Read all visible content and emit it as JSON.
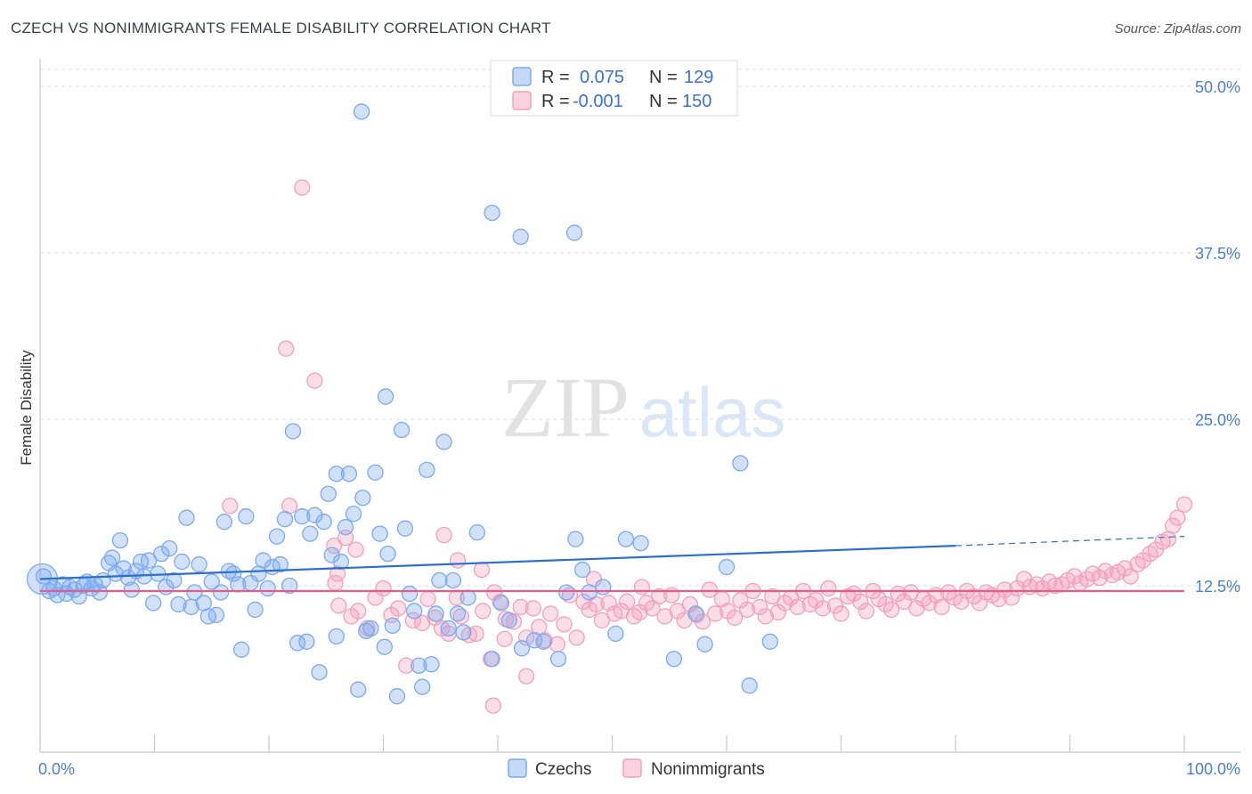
{
  "title": "CZECH VS NONIMMIGRANTS FEMALE DISABILITY CORRELATION CHART",
  "source": "Source: ZipAtlas.com",
  "watermark": {
    "zip": "ZIP",
    "atlas": "atlas"
  },
  "chart_data": {
    "type": "scatter",
    "title": "CZECH VS NONIMMIGRANTS FEMALE DISABILITY CORRELATION CHART",
    "ylabel": "Female Disability",
    "xlim": [
      0,
      100
    ],
    "ylim": [
      0,
      50
    ],
    "x_tick_labels": [
      "0.0%",
      "100.0%"
    ],
    "y_ticks": [
      {
        "value": 12.5,
        "label": "12.5%"
      },
      {
        "value": 25.0,
        "label": "25.0%"
      },
      {
        "value": 37.5,
        "label": "37.5%"
      },
      {
        "value": 50.0,
        "label": "50.0%"
      }
    ],
    "grid": "horizontal dashed",
    "legend_placement": "top-center",
    "legend": [
      {
        "r_label": "R =",
        "r": "0.075",
        "n_label": "N =",
        "n": "129",
        "color": "#7aaaf0"
      },
      {
        "r_label": "R =",
        "r": "-0.001",
        "n_label": "N =",
        "n": "150",
        "color": "#f4a0bb"
      }
    ],
    "series": [
      {
        "name": "Czechs",
        "color": "#7aaaf0",
        "line_color": "#2b6fd0",
        "trend": {
          "x0": 0,
          "y0": 13.0,
          "x1": 80,
          "y1": 15.5,
          "dash_x1": 100,
          "dash_y1": 16.2
        },
        "points": [
          [
            0.3,
            13.2
          ],
          [
            0.8,
            12.1
          ],
          [
            1.2,
            12.3
          ],
          [
            1.5,
            11.8
          ],
          [
            2.0,
            12.6
          ],
          [
            2.3,
            11.9
          ],
          [
            2.6,
            12.4
          ],
          [
            3.0,
            12.2
          ],
          [
            3.4,
            11.7
          ],
          [
            3.8,
            12.5
          ],
          [
            4.1,
            12.8
          ],
          [
            4.5,
            12.3
          ],
          [
            4.8,
            12.6
          ],
          [
            5.2,
            12.0
          ],
          [
            5.5,
            12.9
          ],
          [
            6.0,
            14.2
          ],
          [
            6.3,
            14.6
          ],
          [
            6.6,
            13.4
          ],
          [
            7.0,
            15.9
          ],
          [
            7.3,
            13.8
          ],
          [
            7.7,
            13.1
          ],
          [
            8.0,
            12.2
          ],
          [
            8.4,
            13.6
          ],
          [
            8.8,
            14.3
          ],
          [
            9.1,
            13.2
          ],
          [
            9.5,
            14.4
          ],
          [
            9.9,
            11.2
          ],
          [
            10.3,
            13.4
          ],
          [
            10.6,
            14.9
          ],
          [
            11.0,
            12.4
          ],
          [
            11.3,
            15.3
          ],
          [
            11.7,
            12.9
          ],
          [
            12.1,
            11.1
          ],
          [
            12.4,
            14.3
          ],
          [
            12.8,
            17.6
          ],
          [
            13.2,
            10.9
          ],
          [
            13.5,
            12.0
          ],
          [
            13.9,
            14.1
          ],
          [
            14.3,
            11.2
          ],
          [
            14.7,
            10.2
          ],
          [
            15.0,
            12.8
          ],
          [
            15.4,
            10.3
          ],
          [
            15.8,
            12.0
          ],
          [
            16.1,
            17.3
          ],
          [
            16.5,
            13.6
          ],
          [
            16.9,
            13.4
          ],
          [
            17.3,
            12.6
          ],
          [
            17.6,
            7.7
          ],
          [
            18.0,
            17.7
          ],
          [
            18.4,
            12.7
          ],
          [
            18.8,
            10.7
          ],
          [
            19.1,
            13.4
          ],
          [
            19.5,
            14.4
          ],
          [
            19.9,
            12.3
          ],
          [
            20.3,
            13.9
          ],
          [
            20.7,
            16.2
          ],
          [
            21.0,
            14.1
          ],
          [
            21.4,
            17.5
          ],
          [
            21.8,
            12.5
          ],
          [
            22.1,
            24.1
          ],
          [
            22.5,
            8.2
          ],
          [
            22.9,
            17.7
          ],
          [
            23.3,
            8.3
          ],
          [
            23.6,
            16.4
          ],
          [
            24.0,
            17.8
          ],
          [
            24.4,
            6.0
          ],
          [
            24.8,
            17.3
          ],
          [
            25.2,
            19.4
          ],
          [
            25.5,
            14.8
          ],
          [
            25.9,
            8.7
          ],
          [
            26.3,
            14.3
          ],
          [
            26.7,
            16.9
          ],
          [
            27.0,
            20.9
          ],
          [
            27.4,
            17.9
          ],
          [
            27.8,
            4.7
          ],
          [
            28.2,
            19.1
          ],
          [
            28.5,
            9.1
          ],
          [
            28.9,
            9.3
          ],
          [
            29.3,
            21.0
          ],
          [
            29.7,
            16.4
          ],
          [
            30.1,
            7.9
          ],
          [
            30.4,
            14.9
          ],
          [
            30.8,
            9.5
          ],
          [
            31.2,
            4.2
          ],
          [
            31.6,
            24.2
          ],
          [
            31.9,
            16.8
          ],
          [
            32.3,
            11.9
          ],
          [
            32.7,
            10.6
          ],
          [
            33.1,
            6.5
          ],
          [
            33.4,
            4.9
          ],
          [
            33.8,
            21.2
          ],
          [
            34.2,
            6.6
          ],
          [
            34.6,
            10.4
          ],
          [
            34.9,
            12.9
          ],
          [
            35.3,
            23.3
          ],
          [
            35.7,
            9.3
          ],
          [
            36.1,
            12.9
          ],
          [
            36.5,
            10.4
          ],
          [
            37.0,
            9.0
          ],
          [
            37.4,
            11.6
          ],
          [
            38.2,
            16.5
          ],
          [
            39.5,
            7.0
          ],
          [
            40.3,
            11.2
          ],
          [
            41.0,
            9.9
          ],
          [
            42.1,
            7.8
          ],
          [
            43.2,
            8.4
          ],
          [
            44.0,
            8.3
          ],
          [
            45.3,
            7.0
          ],
          [
            46.0,
            12.0
          ],
          [
            46.8,
            16.0
          ],
          [
            47.4,
            13.7
          ],
          [
            48.0,
            12.0
          ],
          [
            49.2,
            12.4
          ],
          [
            50.3,
            8.9
          ],
          [
            51.2,
            16.0
          ],
          [
            52.5,
            15.7
          ],
          [
            55.4,
            7.0
          ],
          [
            57.3,
            10.4
          ],
          [
            58.1,
            8.1
          ],
          [
            61.2,
            21.7
          ],
          [
            62.0,
            5.0
          ],
          [
            60.0,
            13.9
          ],
          [
            63.8,
            8.3
          ],
          [
            28.1,
            48.1
          ],
          [
            39.5,
            40.5
          ],
          [
            42.0,
            38.7
          ],
          [
            46.7,
            39.0
          ],
          [
            30.2,
            26.7
          ],
          [
            25.9,
            20.9
          ],
          [
            0.2,
            13.0
          ]
        ]
      },
      {
        "name": "Nonimmigrants",
        "color": "#f4a0bb",
        "line_color": "#e85c8a",
        "trend": {
          "x0": 0,
          "y0": 12.1,
          "x1": 100,
          "y1": 12.1
        },
        "points": [
          [
            22.9,
            42.4
          ],
          [
            21.5,
            30.3
          ],
          [
            24.0,
            27.9
          ],
          [
            16.6,
            18.5
          ],
          [
            21.8,
            18.5
          ],
          [
            25.7,
            15.5
          ],
          [
            26.0,
            13.4
          ],
          [
            26.7,
            16.1
          ],
          [
            27.6,
            15.2
          ],
          [
            25.8,
            12.7
          ],
          [
            26.1,
            11.0
          ],
          [
            27.2,
            10.2
          ],
          [
            27.8,
            10.6
          ],
          [
            28.6,
            9.3
          ],
          [
            29.3,
            11.6
          ],
          [
            30.0,
            12.3
          ],
          [
            30.7,
            10.3
          ],
          [
            31.3,
            10.8
          ],
          [
            32.0,
            6.5
          ],
          [
            32.6,
            9.9
          ],
          [
            33.4,
            9.7
          ],
          [
            33.9,
            11.5
          ],
          [
            34.5,
            10.1
          ],
          [
            35.1,
            9.3
          ],
          [
            35.7,
            8.9
          ],
          [
            36.4,
            11.6
          ],
          [
            36.8,
            10.2
          ],
          [
            37.5,
            8.8
          ],
          [
            38.1,
            8.9
          ],
          [
            38.7,
            10.6
          ],
          [
            39.4,
            7.0
          ],
          [
            39.7,
            12.0
          ],
          [
            40.2,
            11.3
          ],
          [
            40.7,
            10.0
          ],
          [
            41.4,
            9.8
          ],
          [
            42.0,
            10.9
          ],
          [
            42.5,
            8.6
          ],
          [
            43.1,
            10.8
          ],
          [
            43.6,
            9.4
          ],
          [
            44.1,
            8.4
          ],
          [
            44.6,
            10.4
          ],
          [
            45.2,
            8.1
          ],
          [
            45.8,
            9.6
          ],
          [
            46.3,
            11.8
          ],
          [
            46.9,
            8.6
          ],
          [
            47.5,
            11.3
          ],
          [
            48.0,
            10.7
          ],
          [
            48.6,
            11.1
          ],
          [
            49.1,
            9.9
          ],
          [
            49.7,
            11.2
          ],
          [
            50.2,
            10.4
          ],
          [
            50.8,
            10.6
          ],
          [
            51.3,
            11.3
          ],
          [
            51.9,
            10.2
          ],
          [
            52.4,
            10.5
          ],
          [
            53.0,
            11.2
          ],
          [
            53.5,
            10.8
          ],
          [
            54.1,
            11.7
          ],
          [
            54.6,
            10.2
          ],
          [
            55.2,
            11.8
          ],
          [
            55.7,
            10.6
          ],
          [
            56.3,
            9.9
          ],
          [
            56.8,
            11.1
          ],
          [
            57.4,
            10.3
          ],
          [
            57.9,
            9.8
          ],
          [
            58.5,
            12.2
          ],
          [
            59.0,
            10.4
          ],
          [
            59.6,
            11.5
          ],
          [
            60.1,
            10.6
          ],
          [
            60.7,
            10.1
          ],
          [
            61.2,
            11.4
          ],
          [
            61.8,
            10.7
          ],
          [
            62.3,
            12.1
          ],
          [
            62.9,
            10.9
          ],
          [
            63.4,
            10.2
          ],
          [
            64.0,
            11.7
          ],
          [
            64.5,
            10.5
          ],
          [
            65.1,
            11.2
          ],
          [
            65.6,
            11.6
          ],
          [
            66.2,
            10.9
          ],
          [
            66.7,
            12.1
          ],
          [
            67.3,
            11.1
          ],
          [
            67.8,
            11.4
          ],
          [
            68.4,
            10.8
          ],
          [
            68.9,
            12.3
          ],
          [
            69.5,
            11.0
          ],
          [
            70.0,
            10.4
          ],
          [
            70.6,
            11.7
          ],
          [
            71.1,
            11.9
          ],
          [
            71.7,
            11.3
          ],
          [
            72.2,
            10.6
          ],
          [
            72.8,
            12.1
          ],
          [
            73.3,
            11.5
          ],
          [
            73.9,
            11.1
          ],
          [
            74.4,
            10.7
          ],
          [
            75.0,
            11.9
          ],
          [
            75.5,
            11.3
          ],
          [
            76.1,
            12.0
          ],
          [
            76.6,
            10.8
          ],
          [
            77.2,
            11.5
          ],
          [
            77.7,
            11.2
          ],
          [
            78.3,
            11.8
          ],
          [
            78.8,
            10.9
          ],
          [
            79.4,
            12.0
          ],
          [
            79.9,
            11.6
          ],
          [
            80.5,
            11.3
          ],
          [
            81.0,
            12.1
          ],
          [
            81.6,
            11.7
          ],
          [
            82.1,
            11.2
          ],
          [
            82.7,
            12.0
          ],
          [
            83.2,
            11.8
          ],
          [
            83.8,
            11.5
          ],
          [
            84.3,
            12.2
          ],
          [
            84.9,
            11.6
          ],
          [
            85.4,
            12.3
          ],
          [
            86.0,
            13.0
          ],
          [
            86.5,
            12.4
          ],
          [
            87.1,
            12.6
          ],
          [
            87.6,
            12.3
          ],
          [
            88.2,
            12.8
          ],
          [
            88.7,
            12.5
          ],
          [
            89.3,
            12.6
          ],
          [
            89.8,
            12.9
          ],
          [
            90.4,
            13.2
          ],
          [
            90.9,
            12.7
          ],
          [
            91.5,
            13.0
          ],
          [
            92.0,
            13.4
          ],
          [
            92.6,
            13.1
          ],
          [
            93.1,
            13.6
          ],
          [
            93.7,
            13.3
          ],
          [
            94.2,
            13.5
          ],
          [
            94.8,
            13.8
          ],
          [
            95.3,
            13.2
          ],
          [
            95.9,
            14.1
          ],
          [
            96.4,
            14.4
          ],
          [
            97.0,
            14.9
          ],
          [
            97.5,
            15.2
          ],
          [
            98.1,
            15.8
          ],
          [
            98.6,
            16.0
          ],
          [
            99.0,
            17.0
          ],
          [
            99.4,
            17.6
          ],
          [
            100.0,
            18.6
          ],
          [
            38.6,
            13.7
          ],
          [
            40.6,
            8.5
          ],
          [
            42.5,
            5.7
          ],
          [
            36.5,
            14.4
          ],
          [
            35.3,
            16.3
          ],
          [
            48.4,
            13.0
          ],
          [
            39.6,
            3.5
          ],
          [
            52.6,
            12.4
          ]
        ]
      }
    ]
  }
}
